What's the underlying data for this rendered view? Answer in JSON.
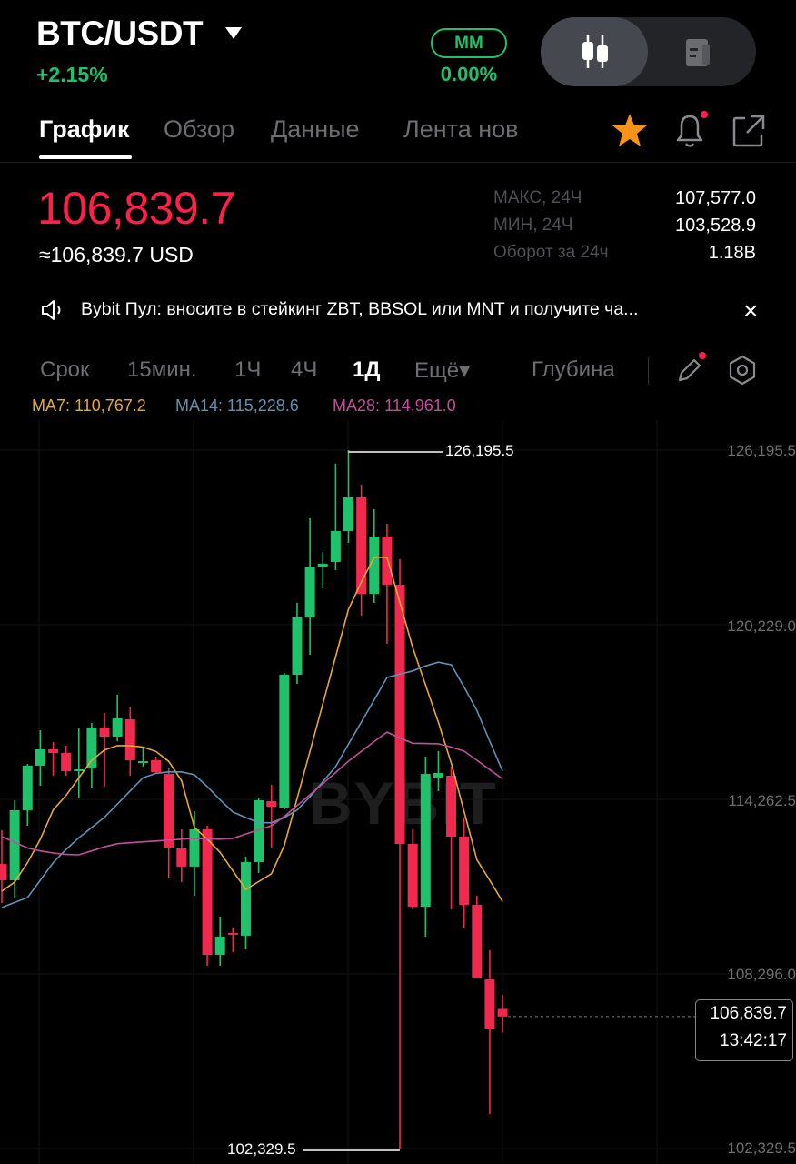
{
  "header": {
    "pair": "BTC/USDT",
    "change": "+2.15%",
    "mm_label": "MM",
    "mm_value": "0.00%",
    "view_toggle": [
      "chart-view",
      "info-view"
    ]
  },
  "tabs": [
    {
      "label": "График",
      "active": true
    },
    {
      "label": "Обзор",
      "active": false
    },
    {
      "label": "Данные",
      "active": false
    },
    {
      "label": "Лента нов",
      "active": false
    }
  ],
  "icons": {
    "favorite": "star-icon",
    "alert": "bell-icon",
    "share": "share-icon"
  },
  "ticker": {
    "last_price": "106,839.7",
    "usd_price": "≈106,839.7 USD",
    "stats": [
      {
        "label": "МАКС, 24Ч",
        "value": "107,577.0"
      },
      {
        "label": "МИН, 24Ч",
        "value": "103,528.9"
      },
      {
        "label": "Оборот за 24ч",
        "value": "1.18B"
      }
    ]
  },
  "announcement": {
    "text": "Bybit Пул: вносите в стейкинг ZBT, BBSOL или MNT и получите ча...",
    "close": "×"
  },
  "intervals": {
    "items": [
      {
        "label": "Срок",
        "active": false
      },
      {
        "label": "15мин.",
        "active": false
      },
      {
        "label": "1Ч",
        "active": false
      },
      {
        "label": "4Ч",
        "active": false
      },
      {
        "label": "1Д",
        "active": true
      },
      {
        "label": "Ещё▾",
        "active": false
      }
    ],
    "depth": "Глубина"
  },
  "indicators": {
    "ma7": "MA7: 110,767.2",
    "ma14": "MA14: 115,228.6",
    "ma28": "MA28: 114,961.0"
  },
  "colors": {
    "up": "#1fc16b",
    "down": "#f2294e",
    "ma7": "#e7a930",
    "ma14": "#5f93b3",
    "ma28": "#c0509b",
    "accent_star": "#f7931a"
  },
  "chart_data": {
    "type": "candlestick",
    "interval": "1Д",
    "y_ticks": [
      "126,195.5",
      "120,229.0",
      "114,262.5",
      "108,296.0",
      "102,329.5"
    ],
    "y_tick_values": [
      126195.5,
      120229.0,
      114262.5,
      108296.0,
      102329.5
    ],
    "ylim": [
      102329.5,
      126195.5
    ],
    "grid": true,
    "max_marker": "126,195.5",
    "min_marker": "102,329.5",
    "current_price": "106,839.7",
    "current_price_value": 106839.7,
    "countdown": "13:42:17",
    "watermark": "BYBIT",
    "ohlc": [
      [
        112057,
        113207,
        110721,
        111497
      ],
      [
        111497,
        114232,
        110876,
        113890
      ],
      [
        113890,
        115475,
        113362,
        115413
      ],
      [
        115413,
        116625,
        114729,
        115972
      ],
      [
        115972,
        116221,
        115071,
        115848
      ],
      [
        115848,
        116096,
        115071,
        115226
      ],
      [
        115226,
        116687,
        114325,
        115289
      ],
      [
        115320,
        116873,
        114667,
        116718
      ],
      [
        116718,
        117215,
        114698,
        116407
      ],
      [
        116407,
        117837,
        116252,
        117029
      ],
      [
        116998,
        117402,
        115071,
        115599
      ],
      [
        115506,
        116065,
        115382,
        115568
      ],
      [
        115599,
        115724,
        115133,
        115195
      ],
      [
        115133,
        115320,
        111560,
        112616
      ],
      [
        112585,
        113238,
        111435,
        111964
      ],
      [
        111964,
        113859,
        110969,
        113238
      ],
      [
        113238,
        113362,
        108576,
        108949
      ],
      [
        108949,
        110254,
        108576,
        109571
      ],
      [
        109695,
        109881,
        109042,
        109633
      ],
      [
        109602,
        112305,
        109136,
        112119
      ],
      [
        112119,
        114325,
        111746,
        114232
      ],
      [
        114201,
        114760,
        112616,
        114014
      ],
      [
        113983,
        118582,
        113921,
        118520
      ],
      [
        118520,
        120975,
        118210,
        120478
      ],
      [
        120478,
        123865,
        119204,
        122187
      ],
      [
        122187,
        122715,
        121472,
        122311
      ],
      [
        122374,
        125730,
        122094,
        123430
      ],
      [
        123430,
        126195.5,
        123026,
        124580
      ],
      [
        124580,
        125015,
        120540,
        121286
      ],
      [
        121286,
        124176,
        120975,
        123244
      ],
      [
        123244,
        123679,
        119577,
        121597
      ],
      [
        121597,
        122467,
        102329.5,
        112740
      ],
      [
        112740,
        113238,
        110503,
        110596
      ],
      [
        110596,
        115724,
        109571,
        115133
      ],
      [
        115009,
        115910,
        114543,
        115164
      ],
      [
        115071,
        115382,
        110503,
        112989
      ],
      [
        112989,
        113610,
        109881,
        110658
      ],
      [
        110658,
        110969,
        108172,
        108172
      ],
      [
        108110,
        109105,
        103511,
        106400
      ],
      [
        107100,
        107577,
        106300,
        106839.7
      ]
    ],
    "ma7": [
      111124,
      111435,
      112100,
      112900,
      113900,
      114400,
      115000,
      115600,
      115950,
      116100,
      116100,
      116050,
      115900,
      115560,
      114900,
      113300,
      112900,
      112450,
      111820,
      111187,
      111450,
      111720,
      112690,
      114300,
      115900,
      117530,
      119140,
      120758,
      121690,
      122529,
      122530,
      121000,
      119450,
      118170,
      116900,
      115500,
      113850,
      112200,
      111500,
      110767.2
    ],
    "ma14": [
      110565,
      110740,
      110907,
      111500,
      112100,
      112550,
      112950,
      113300,
      113650,
      114100,
      114550,
      115000,
      115150,
      115200,
      115200,
      115100,
      114700,
      114250,
      113828,
      113640,
      113470,
      113460,
      113640,
      113900,
      114350,
      114870,
      115382,
      116150,
      116900,
      117660,
      118427,
      118540,
      118650,
      118820,
      118950,
      118862,
      118100,
      117300,
      116250,
      115228.6
    ],
    "ma28": [
      112989,
      112800,
      112600,
      112500,
      112430,
      112380,
      112368,
      112500,
      112640,
      112750,
      112780,
      112810,
      112840,
      112870,
      112900,
      112925,
      112915,
      112900,
      112930,
      113080,
      113220,
      113360,
      113680,
      114050,
      114420,
      114800,
      115180,
      115568,
      115900,
      116240,
      116560,
      116360,
      116180,
      116170,
      116160,
      116050,
      115910,
      115600,
      115280,
      114961.0
    ]
  }
}
